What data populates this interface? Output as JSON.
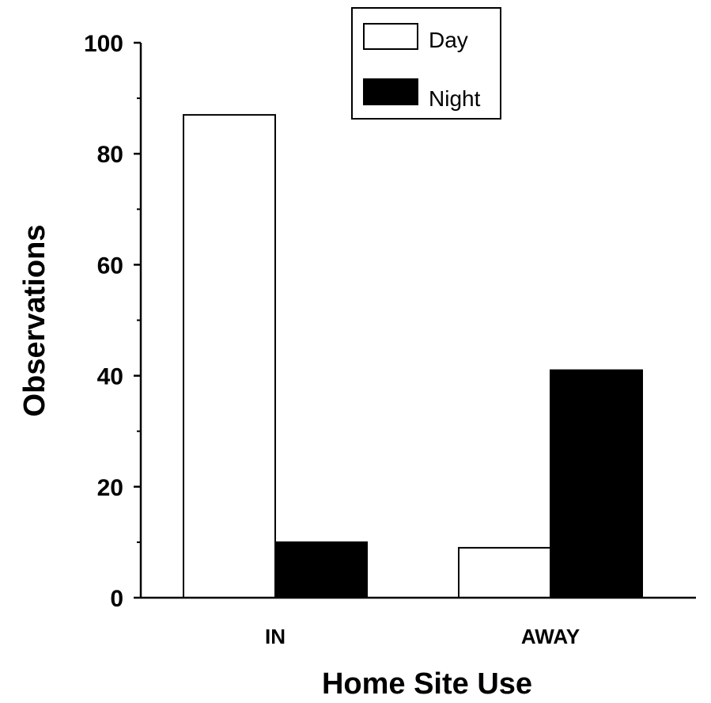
{
  "chart_data": {
    "type": "bar",
    "categories": [
      "IN",
      "AWAY"
    ],
    "series": [
      {
        "name": "Day",
        "values": [
          87,
          9
        ],
        "color": "#ffffff"
      },
      {
        "name": "Night",
        "values": [
          10,
          41
        ],
        "color": "#000000"
      }
    ],
    "xlabel": "Home Site Use",
    "ylabel": "Observations",
    "ylim": [
      0,
      100
    ],
    "yticks": [
      "0",
      "20",
      "40",
      "60",
      "80",
      "100"
    ],
    "legend": {
      "position": "top-center",
      "entries": [
        "Day",
        "Night"
      ]
    },
    "grid": false
  }
}
